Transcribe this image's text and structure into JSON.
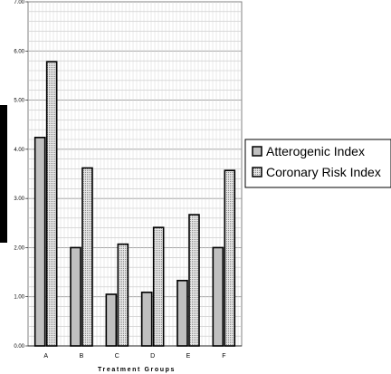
{
  "chart_data": {
    "type": "bar",
    "title": "",
    "xlabel": "Treatment Groups",
    "ylabel": "",
    "categories": [
      "A",
      "B",
      "C",
      "D",
      "E",
      "F"
    ],
    "series": [
      {
        "name": "Atterogenic Index",
        "values": [
          4.24,
          2.0,
          1.05,
          1.09,
          1.33,
          2.0
        ],
        "color": "#c0c0c0",
        "pattern": "solid"
      },
      {
        "name": "Coronary Risk Index",
        "values": [
          5.78,
          3.62,
          2.07,
          2.41,
          2.67,
          3.57
        ],
        "color": "#d4d4d4",
        "pattern": "dotted"
      }
    ],
    "ylim": [
      0,
      7
    ],
    "yticks": [
      "0.00",
      "1.00",
      "2.00",
      "3.00",
      "4.00",
      "5.00",
      "6.00",
      "7.00"
    ],
    "minor_gridlines": 0.2,
    "grid": true,
    "legend_position": "right",
    "plot_background": "#ffffff",
    "gridline_color": "#a0a0a0"
  }
}
